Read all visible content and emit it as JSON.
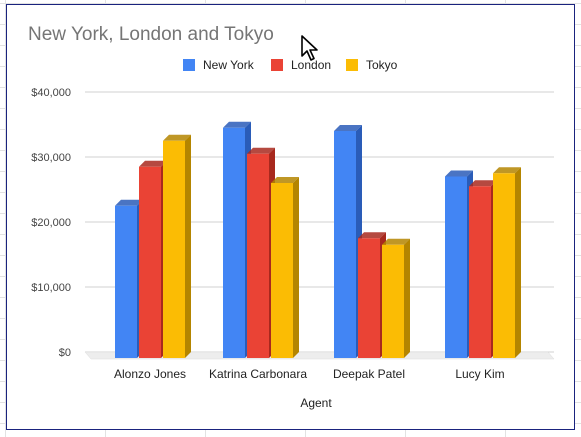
{
  "chart_data": {
    "type": "bar",
    "title": "New York, London and Tokyo",
    "xlabel": "Agent",
    "ylabel": "",
    "categories": [
      "Alonzo Jones",
      "Katrina Carbonara",
      "Deepak Patel",
      "Lucy Kim"
    ],
    "series": [
      {
        "name": "New York",
        "color": "#4285f4",
        "side_color": "#2a5cb8",
        "values": [
          22500,
          34500,
          34000,
          27000
        ]
      },
      {
        "name": "London",
        "color": "#ea4335",
        "side_color": "#a8291e",
        "values": [
          28500,
          30500,
          17500,
          25500
        ]
      },
      {
        "name": "Tokyo",
        "color": "#fbbc04",
        "side_color": "#b48500",
        "values": [
          32500,
          26000,
          16500,
          27500
        ]
      }
    ],
    "ylim": [
      0,
      40000
    ],
    "yticks": [
      0,
      10000,
      20000,
      30000,
      40000
    ],
    "ytick_labels": [
      "$0",
      "$10,000",
      "$20,000",
      "$30,000",
      "$40,000"
    ],
    "grid": true,
    "legend_position": "top",
    "style": "3d"
  }
}
